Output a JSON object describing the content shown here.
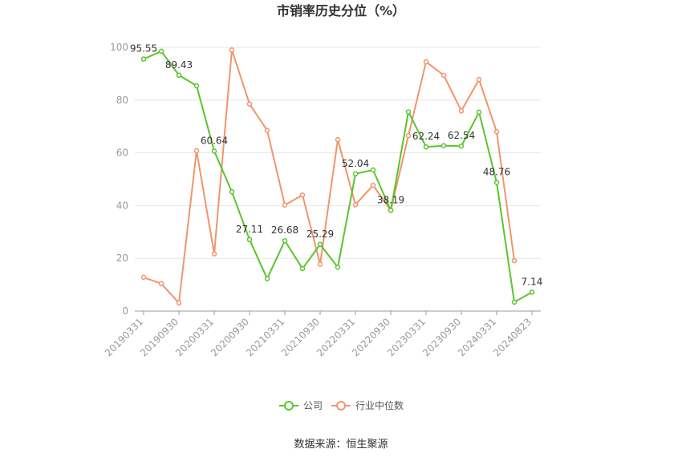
{
  "chart_data": {
    "type": "line",
    "title": "市销率历史分位（%）",
    "ylim": [
      0,
      100
    ],
    "yticks": [
      0,
      20,
      40,
      60,
      80,
      100
    ],
    "x": [
      "20190331",
      "20190630",
      "20190930",
      "20191231",
      "20200331",
      "20200630",
      "20200930",
      "20201231",
      "20210331",
      "20210630",
      "20210930",
      "20211231",
      "20220331",
      "20220630",
      "20220930",
      "20221231",
      "20230331",
      "20230630",
      "20230930",
      "20231231",
      "20240331",
      "20240630",
      "20240823"
    ],
    "x_tick_labels": [
      "20190331",
      "20190930",
      "20200331",
      "20200930",
      "20210331",
      "20210930",
      "20220331",
      "20220930",
      "20230331",
      "20230930",
      "20240331",
      "20240823"
    ],
    "grid": true,
    "legend_position": "bottom",
    "series": [
      {
        "name": "公司",
        "color": "#5ac52d",
        "values": [
          95.55,
          98.5,
          89.43,
          85.4,
          60.64,
          45.2,
          27.11,
          12.3,
          26.68,
          16.1,
          25.29,
          16.6,
          52.04,
          53.5,
          38.19,
          75.5,
          62.24,
          62.7,
          62.54,
          75.4,
          48.76,
          3.4,
          7.14
        ],
        "labels": {
          "0": "95.55",
          "2": "89.43",
          "4": "60.64",
          "6": "27.11",
          "8": "26.68",
          "10": "25.29",
          "12": "52.04",
          "14": "38.19",
          "16": "62.24",
          "18": "62.54",
          "20": "48.76",
          "22": "7.14"
        }
      },
      {
        "name": "行业中位数",
        "color": "#f0956b",
        "values": [
          12.8,
          10.4,
          3.1,
          60.8,
          21.7,
          99.0,
          78.5,
          68.5,
          40.2,
          44.0,
          17.8,
          65.0,
          40.3,
          47.7,
          38.2,
          66.5,
          94.5,
          89.4,
          75.9,
          87.8,
          68.0,
          19.1,
          null
        ]
      }
    ]
  },
  "source": "数据来源：恒生聚源"
}
